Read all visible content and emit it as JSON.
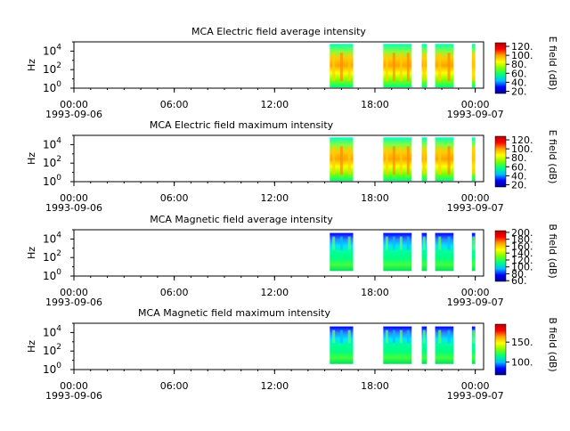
{
  "time_axis": {
    "ticks": [
      {
        "time": "00:00",
        "date": "1993-09-06"
      },
      {
        "time": "06:00",
        "date": ""
      },
      {
        "time": "12:00",
        "date": ""
      },
      {
        "time": "18:00",
        "date": ""
      },
      {
        "time": "00:00",
        "date": "1993-09-07"
      }
    ],
    "range_hours": [
      0,
      24.5
    ],
    "minor_step_hours": 1
  },
  "colorscale": [
    "#00008b",
    "#0000ff",
    "#00bfff",
    "#00ff7f",
    "#7fff00",
    "#ffff00",
    "#ffa500",
    "#ff0000",
    "#b00000"
  ],
  "chart_data": [
    {
      "type": "heatmap",
      "title": "MCA  Electric field average intensity",
      "ylabel": "Hz",
      "yscale": "log",
      "ylim": [
        1,
        100000
      ],
      "yticks": [
        "10^0",
        "10^2",
        "10^4"
      ],
      "colorbar_label": "E field (dB)",
      "colorbar_range": [
        15,
        128
      ],
      "colorbar_ticks": [
        "20.",
        "40.",
        "60.",
        "80.",
        "100.",
        "120."
      ],
      "x_unit": "hours since 1993-09-06 00:00",
      "data_segments": [
        [
          15.3,
          16.7
        ],
        [
          18.5,
          20.2
        ],
        [
          20.8,
          21.1
        ],
        [
          21.6,
          22.7
        ],
        [
          23.8,
          24.0
        ]
      ]
    },
    {
      "type": "heatmap",
      "title": "MCA  Electric field maximum intensity",
      "ylabel": "Hz",
      "yscale": "log",
      "ylim": [
        1,
        100000
      ],
      "yticks": [
        "10^0",
        "10^2",
        "10^4"
      ],
      "colorbar_label": "E field (dB)",
      "colorbar_range": [
        15,
        128
      ],
      "colorbar_ticks": [
        "20.",
        "40.",
        "60.",
        "80.",
        "100.",
        "120."
      ],
      "x_unit": "hours since 1993-09-06 00:00",
      "data_segments": [
        [
          15.3,
          16.7
        ],
        [
          18.5,
          20.2
        ],
        [
          20.8,
          21.1
        ],
        [
          21.6,
          22.7
        ],
        [
          23.8,
          24.0
        ]
      ]
    },
    {
      "type": "heatmap",
      "title": "MCA  Magnetic field average intensity",
      "ylabel": "Hz",
      "yscale": "log",
      "ylim": [
        1,
        100000
      ],
      "yticks": [
        "10^0",
        "10^2",
        "10^4"
      ],
      "colorbar_label": "B field (dB)",
      "colorbar_range": [
        58,
        205
      ],
      "colorbar_ticks": [
        "60.",
        "80.",
        "100.",
        "120.",
        "140.",
        "160.",
        "180.",
        "200."
      ],
      "x_unit": "hours since 1993-09-06 00:00",
      "data_segments": [
        [
          15.3,
          16.7
        ],
        [
          18.5,
          20.2
        ],
        [
          20.8,
          21.1
        ],
        [
          21.6,
          22.7
        ],
        [
          23.8,
          24.0
        ]
      ]
    },
    {
      "type": "heatmap",
      "title": "MCA  Magnetic field maximum intensity",
      "ylabel": "Hz",
      "yscale": "log",
      "ylim": [
        1,
        100000
      ],
      "yticks": [
        "10^0",
        "10^2",
        "10^4"
      ],
      "colorbar_label": "B field (dB)",
      "colorbar_range": [
        68,
        195
      ],
      "colorbar_ticks": [
        "100.",
        "150."
      ],
      "x_unit": "hours since 1993-09-06 00:00",
      "data_segments": [
        [
          15.3,
          16.7
        ],
        [
          18.5,
          20.2
        ],
        [
          20.8,
          21.1
        ],
        [
          21.6,
          22.7
        ],
        [
          23.8,
          24.0
        ]
      ]
    }
  ]
}
